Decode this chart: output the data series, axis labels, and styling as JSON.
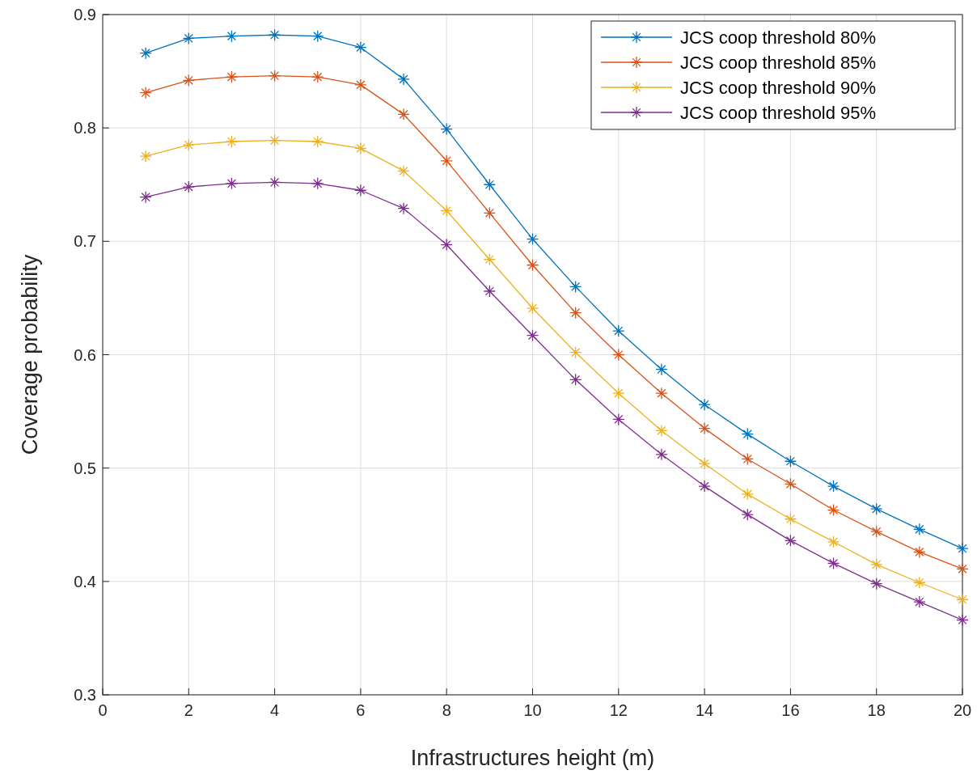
{
  "chart_data": {
    "type": "line",
    "xlabel": "Infrastructures height (m)",
    "ylabel": "Coverage probability",
    "x": [
      1,
      2,
      3,
      4,
      5,
      6,
      7,
      8,
      9,
      10,
      11,
      12,
      13,
      14,
      15,
      16,
      17,
      18,
      19,
      20
    ],
    "series": [
      {
        "name": "JCS coop threshold 80%",
        "color": "#0072bd",
        "values": [
          0.866,
          0.879,
          0.881,
          0.882,
          0.881,
          0.871,
          0.843,
          0.799,
          0.75,
          0.702,
          0.66,
          0.621,
          0.587,
          0.556,
          0.53,
          0.506,
          0.484,
          0.464,
          0.446,
          0.429
        ]
      },
      {
        "name": "JCS coop threshold 85%",
        "color": "#d95319",
        "values": [
          0.831,
          0.842,
          0.845,
          0.846,
          0.845,
          0.838,
          0.812,
          0.771,
          0.725,
          0.679,
          0.637,
          0.6,
          0.566,
          0.535,
          0.508,
          0.486,
          0.463,
          0.444,
          0.426,
          0.411
        ]
      },
      {
        "name": "JCS coop threshold 90%",
        "color": "#edb120",
        "values": [
          0.775,
          0.785,
          0.788,
          0.789,
          0.788,
          0.782,
          0.762,
          0.727,
          0.684,
          0.641,
          0.602,
          0.566,
          0.533,
          0.504,
          0.477,
          0.455,
          0.435,
          0.415,
          0.399,
          0.384
        ]
      },
      {
        "name": "JCS coop threshold 95%",
        "color": "#7e2f8e",
        "values": [
          0.739,
          0.748,
          0.751,
          0.752,
          0.751,
          0.745,
          0.729,
          0.697,
          0.656,
          0.617,
          0.578,
          0.543,
          0.512,
          0.484,
          0.459,
          0.436,
          0.416,
          0.398,
          0.382,
          0.366
        ]
      }
    ],
    "xlim": [
      0,
      20
    ],
    "xticks": [
      0,
      2,
      4,
      6,
      8,
      10,
      12,
      14,
      16,
      18,
      20
    ],
    "ylim": [
      0.3,
      0.9
    ],
    "yticks": [
      0.3,
      0.4,
      0.5,
      0.6,
      0.7,
      0.8,
      0.9
    ],
    "grid": true,
    "legend": "top right",
    "marker": "cross",
    "line_style": "solid"
  }
}
